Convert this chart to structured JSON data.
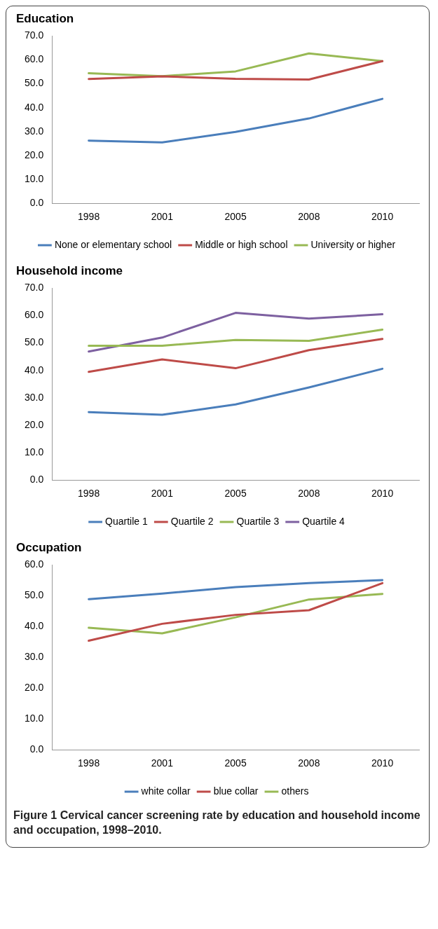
{
  "chart_data": [
    {
      "type": "line",
      "title": "Education",
      "categories": [
        "1998",
        "2001",
        "2005",
        "2008",
        "2010"
      ],
      "ylim": [
        0,
        70
      ],
      "yticks": [
        {
          "value": 0,
          "label": "0.0"
        },
        {
          "value": 10,
          "label": "10.0"
        },
        {
          "value": 20,
          "label": "20.0"
        },
        {
          "value": 30,
          "label": "30.0"
        },
        {
          "value": 40,
          "label": "40.0"
        },
        {
          "value": 50,
          "label": "50.0"
        },
        {
          "value": 60,
          "label": "60.0"
        },
        {
          "value": 70,
          "label": "70.0"
        }
      ],
      "grid": false,
      "legend": "bottom",
      "marker": "none",
      "line_style": "solid",
      "series": [
        {
          "name": "None or elementary school",
          "color": "#4a7ebb",
          "values": [
            26.2,
            25.5,
            29.9,
            35.5,
            43.7
          ]
        },
        {
          "name": "Middle or high school",
          "color": "#be4b48",
          "values": [
            52.0,
            53.1,
            52.1,
            51.8,
            59.5
          ]
        },
        {
          "name": "University or higher",
          "color": "#98b954",
          "values": [
            54.4,
            53.2,
            55.2,
            62.7,
            59.5
          ]
        }
      ]
    },
    {
      "type": "line",
      "title": "Household income",
      "categories": [
        "1998",
        "2001",
        "2005",
        "2008",
        "2010"
      ],
      "ylim": [
        0,
        70
      ],
      "yticks": [
        {
          "value": 0,
          "label": "0.0"
        },
        {
          "value": 10,
          "label": "10.0"
        },
        {
          "value": 20,
          "label": "20.0"
        },
        {
          "value": 30,
          "label": "30.0"
        },
        {
          "value": 40,
          "label": "40.0"
        },
        {
          "value": 50,
          "label": "50.0"
        },
        {
          "value": 60,
          "label": "60.0"
        },
        {
          "value": 70,
          "label": "70.0"
        }
      ],
      "grid": false,
      "legend": "bottom",
      "marker": "none",
      "line_style": "solid",
      "series": [
        {
          "name": "Quartile 1",
          "color": "#4a7ebb",
          "values": [
            24.8,
            23.8,
            27.6,
            33.8,
            40.6
          ]
        },
        {
          "name": "Quartile 2",
          "color": "#be4b48",
          "values": [
            39.5,
            44.0,
            40.8,
            47.4,
            51.5
          ]
        },
        {
          "name": "Quartile 3",
          "color": "#98b954",
          "values": [
            49.0,
            49.0,
            51.1,
            50.8,
            54.9
          ]
        },
        {
          "name": "Quartile 4",
          "color": "#7d60a0",
          "values": [
            46.9,
            52.0,
            61.0,
            58.9,
            60.5
          ]
        }
      ]
    },
    {
      "type": "line",
      "title": "Occupation",
      "categories": [
        "1998",
        "2001",
        "2005",
        "2008",
        "2010"
      ],
      "ylim": [
        0,
        60
      ],
      "yticks": [
        {
          "value": 0,
          "label": "0.0"
        },
        {
          "value": 10,
          "label": "10.0"
        },
        {
          "value": 20,
          "label": "20.0"
        },
        {
          "value": 30,
          "label": "30.0"
        },
        {
          "value": 40,
          "label": "40.0"
        },
        {
          "value": 50,
          "label": "50.0"
        },
        {
          "value": 60,
          "label": "60.0"
        }
      ],
      "grid": false,
      "legend": "bottom",
      "marker": "none",
      "line_style": "solid",
      "annotations": [
        "Figure 1 Cervical cancer screening rate by education and household income and occupation, 1998–2010."
      ],
      "series": [
        {
          "name": "white collar",
          "color": "#4a7ebb",
          "values": [
            48.9,
            50.7,
            52.8,
            54.1,
            55.1
          ]
        },
        {
          "name": "blue collar",
          "color": "#be4b48",
          "values": [
            35.4,
            40.9,
            43.8,
            45.3,
            54.1
          ]
        },
        {
          "name": "others",
          "color": "#98b954",
          "values": [
            39.6,
            37.8,
            43.0,
            48.8,
            50.6
          ]
        }
      ]
    }
  ]
}
